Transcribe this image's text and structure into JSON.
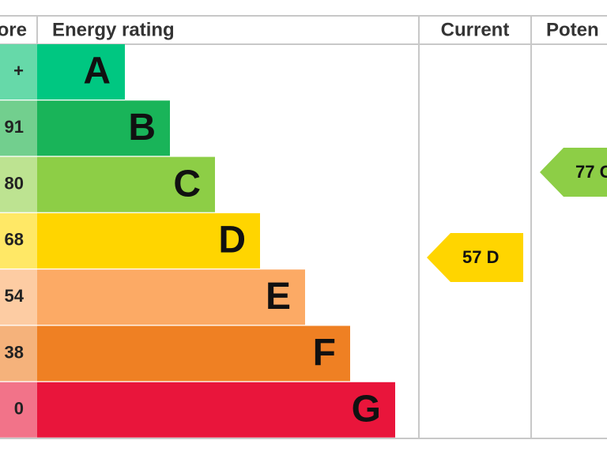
{
  "header": {
    "score": "ore",
    "rating": "Energy rating",
    "current": "Current",
    "potential": "Poten"
  },
  "bands": [
    {
      "score": "+",
      "letter": "A",
      "color": "#00c781",
      "light": "#66d9a9"
    },
    {
      "score": "91",
      "letter": "B",
      "color": "#19b459",
      "light": "#72cf8e"
    },
    {
      "score": "80",
      "letter": "C",
      "color": "#8dce46",
      "light": "#bde391"
    },
    {
      "score": "68",
      "letter": "D",
      "color": "#ffd500",
      "light": "#ffe866"
    },
    {
      "score": "54",
      "letter": "E",
      "color": "#fcaa65",
      "light": "#fdcca3"
    },
    {
      "score": "38",
      "letter": "F",
      "color": "#ef8023",
      "light": "#f5b27b"
    },
    {
      "score": "0",
      "letter": "G",
      "color": "#e9153b",
      "light": "#f27389"
    }
  ],
  "current": {
    "label": "57 D",
    "color": "#ffd500",
    "band": "D"
  },
  "potential": {
    "label": "77 C",
    "color": "#8dce46",
    "band": "C"
  }
}
